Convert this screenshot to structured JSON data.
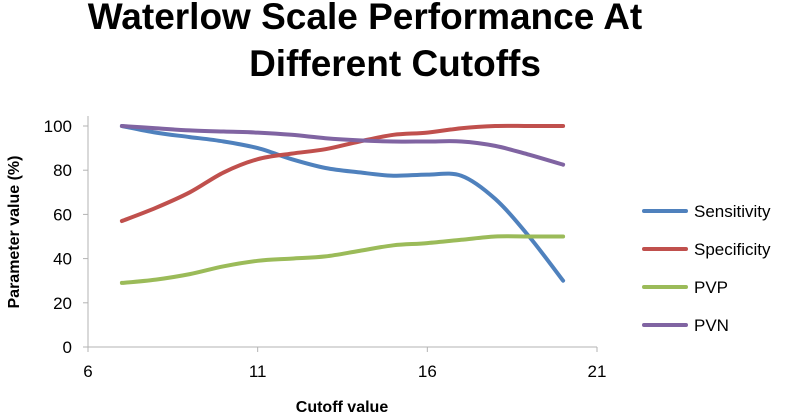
{
  "chart_data": {
    "type": "line",
    "title_lines": [
      "Waterlow Scale Performance At",
      "Different Cutoffs"
    ],
    "xlabel": "Cutoff value",
    "ylabel": "Parameter value (%)",
    "xlim": [
      6,
      21
    ],
    "ylim": [
      0,
      100
    ],
    "x_ticks": [
      6,
      11,
      16,
      21
    ],
    "y_ticks": [
      0,
      20,
      40,
      60,
      80,
      100
    ],
    "legend_position": "right",
    "grid": false,
    "series": [
      {
        "name": "Sensitivity",
        "color": "#4f81bd",
        "x": [
          7,
          8,
          9,
          10,
          11,
          12,
          13,
          14,
          15,
          16,
          17,
          18,
          19,
          20
        ],
        "y": [
          100,
          97,
          95,
          93,
          90,
          85,
          81,
          79,
          77.5,
          78,
          77.5,
          67,
          50,
          30
        ]
      },
      {
        "name": "Specificity",
        "color": "#c0504d",
        "x": [
          7,
          8,
          9,
          10,
          11,
          12,
          13,
          14,
          15,
          16,
          17,
          18,
          19,
          20
        ],
        "y": [
          57,
          63,
          70,
          79,
          85,
          87.5,
          89.5,
          93,
          96,
          97,
          99,
          100,
          100,
          100
        ]
      },
      {
        "name": "PVP",
        "color": "#9bbb59",
        "x": [
          7,
          8,
          9,
          10,
          11,
          12,
          13,
          14,
          15,
          16,
          17,
          18,
          19,
          20
        ],
        "y": [
          29,
          30.5,
          33,
          36.5,
          39,
          40,
          41,
          43.5,
          46,
          47,
          48.5,
          50,
          50,
          50
        ]
      },
      {
        "name": "PVN",
        "color": "#8064a2",
        "x": [
          7,
          8,
          9,
          10,
          11,
          12,
          13,
          14,
          15,
          16,
          17,
          18,
          19,
          20
        ],
        "y": [
          100,
          99,
          98,
          97.5,
          97,
          96,
          94.5,
          93.5,
          93,
          93,
          93,
          91,
          87,
          82.5
        ]
      }
    ]
  }
}
